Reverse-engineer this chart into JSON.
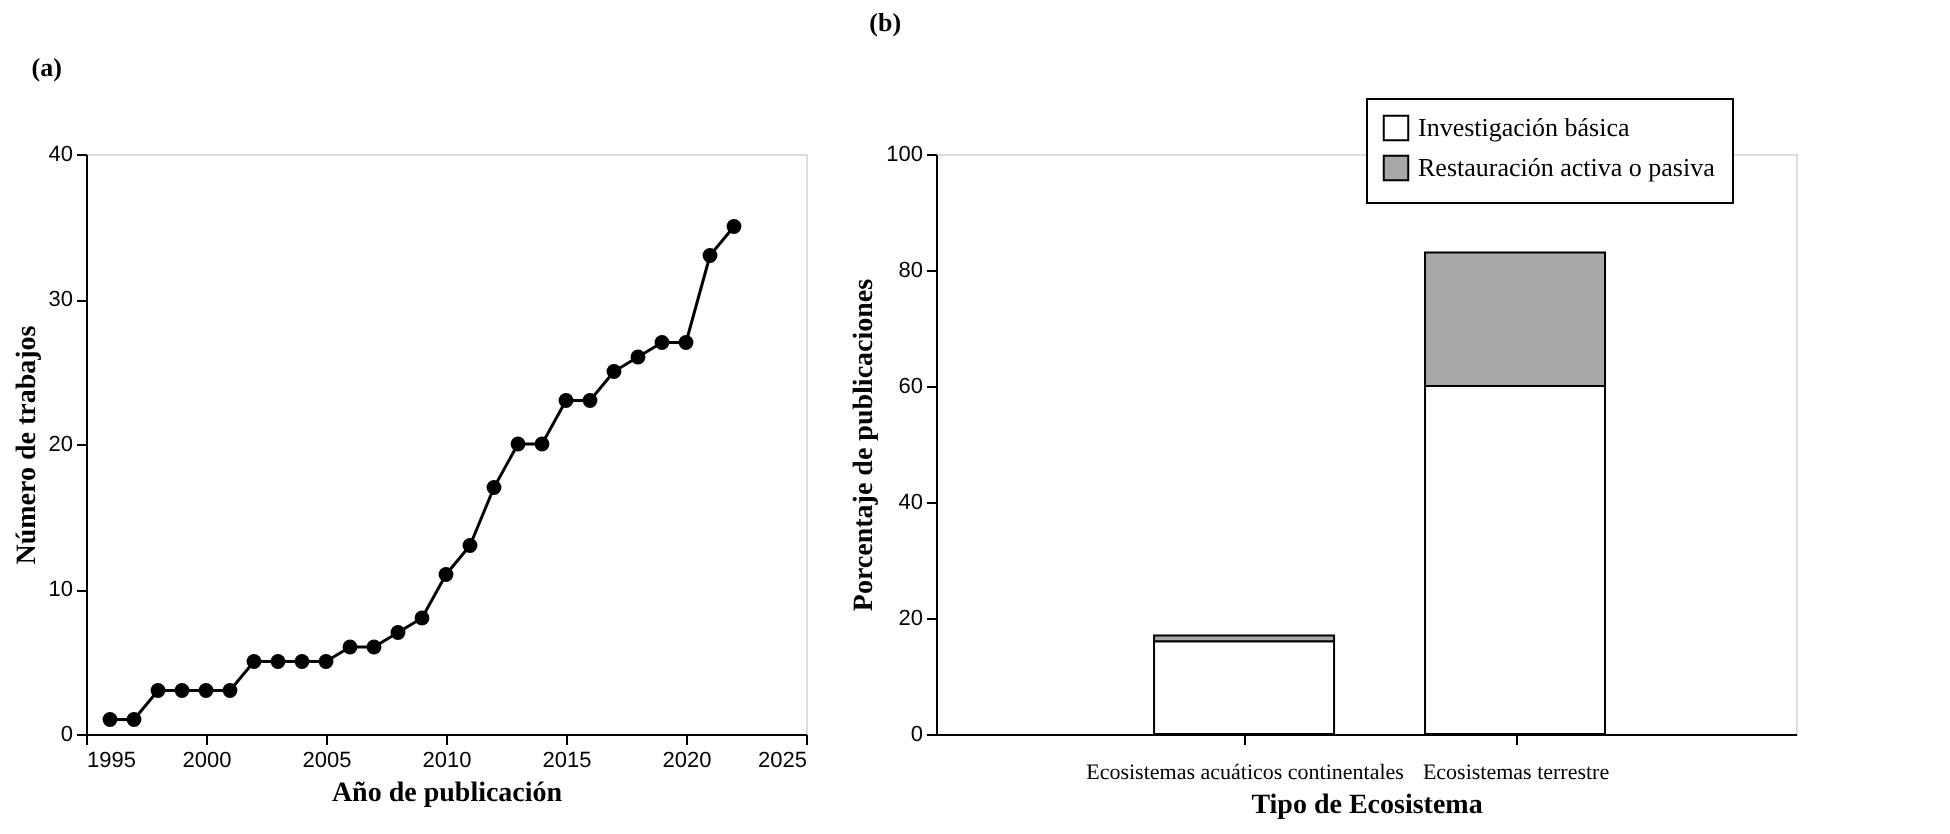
{
  "chart_data": [
    {
      "type": "line",
      "title": "(a)",
      "xlabel": "Año de publicación",
      "ylabel": "Número de trabajos",
      "x": [
        1996,
        1997,
        1998,
        1999,
        2000,
        2001,
        2002,
        2003,
        2004,
        2005,
        2006,
        2007,
        2008,
        2009,
        2010,
        2011,
        2012,
        2013,
        2014,
        2015,
        2016,
        2017,
        2018,
        2019,
        2020,
        2021,
        2022
      ],
      "series": [
        {
          "color": "#000000",
          "values": [
            1,
            1,
            3,
            3,
            3,
            3,
            5,
            5,
            5,
            5,
            6,
            6,
            7,
            8,
            11,
            13,
            17,
            20,
            20,
            23,
            23,
            25,
            26,
            27,
            27,
            33,
            35
          ]
        }
      ],
      "xlim": [
        1995,
        2025
      ],
      "xticks": [
        {
          "value": 1995,
          "label": "1995"
        },
        {
          "value": 2000,
          "label": "2000"
        },
        {
          "value": 2005,
          "label": "2005"
        },
        {
          "value": 2010,
          "label": "2010"
        },
        {
          "value": 2015,
          "label": "2015"
        },
        {
          "value": 2020,
          "label": "2020"
        },
        {
          "value": 2025,
          "label": "2025"
        }
      ],
      "ylim": [
        0,
        40
      ],
      "yticks": [
        0,
        10,
        20,
        30,
        40
      ],
      "marker": "circle",
      "line_style": "solid",
      "grid": false,
      "legend": false
    },
    {
      "type": "bar",
      "title": "(b)",
      "xlabel": "Tipo de Ecosistema",
      "ylabel": "Porcentaje de publicaciones",
      "categories": [
        "Ecosistemas acuáticos continentales",
        "Ecosistemas terrestre"
      ],
      "series": [
        {
          "name": "Investigación básica",
          "color": "#ffffff",
          "values": [
            16,
            60
          ]
        },
        {
          "name": "Restauración activa o pasiva",
          "color": "#a8a8a8",
          "values": [
            1,
            23
          ]
        }
      ],
      "stacked": true,
      "ylim": [
        0,
        100
      ],
      "yticks": [
        0,
        20,
        40,
        60,
        80,
        100
      ],
      "grid": false,
      "legend": "top right"
    }
  ]
}
